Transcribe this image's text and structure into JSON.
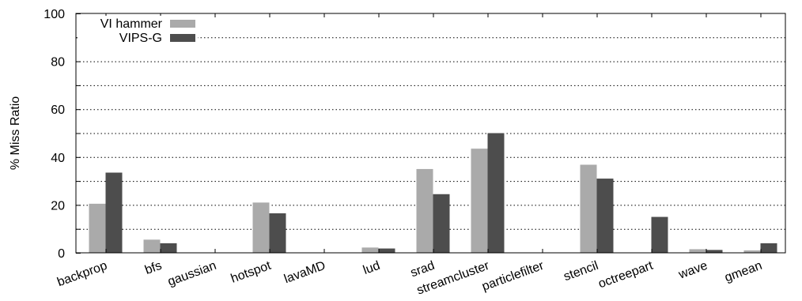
{
  "chart_data": {
    "type": "bar",
    "ylabel": "% Miss Ratio",
    "xlabel": "",
    "ylim": [
      0,
      100
    ],
    "yticks": [
      0,
      20,
      40,
      60,
      80,
      100
    ],
    "grid": true,
    "legend_position": "top-left",
    "categories": [
      "backprop",
      "bfs",
      "gaussian",
      "hotspot",
      "lavaMD",
      "lud",
      "srad",
      "streamcluster",
      "particlefilter",
      "stencil",
      "octreepart",
      "wave",
      "gmean"
    ],
    "series": [
      {
        "name": "VI hammer",
        "color": "#aaaaaa",
        "values": [
          20.5,
          5.5,
          0,
          21,
          0,
          2.2,
          35,
          43.5,
          0,
          36.8,
          0,
          1.5,
          1
        ]
      },
      {
        "name": "VIPS-G",
        "color": "#4d4d4d",
        "values": [
          33.5,
          4,
          0,
          16.5,
          0,
          1.8,
          24.5,
          50,
          0,
          31,
          15,
          1.2,
          4
        ]
      }
    ]
  }
}
